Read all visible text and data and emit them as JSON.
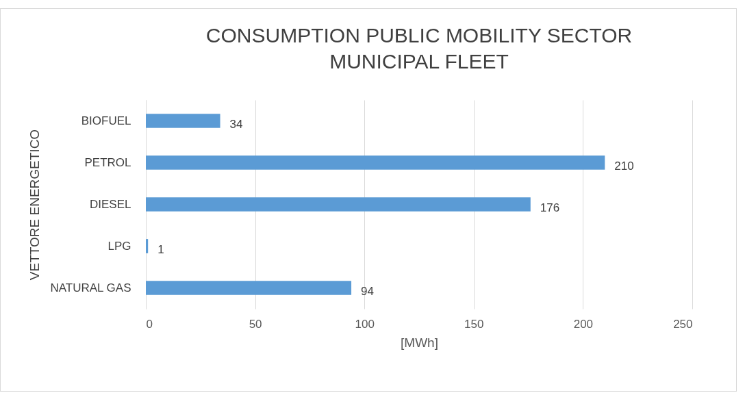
{
  "chart_data": {
    "type": "bar",
    "orientation": "horizontal",
    "title": "CONSUMPTION PUBLIC MOBILITY SECTOR\nMUNICIPAL FLEET",
    "xlabel": "[MWh]",
    "ylabel": "VETTORE ENERGETICO",
    "categories": [
      "BIOFUEL",
      "PETROL",
      "DIESEL",
      "LPG",
      "NATURAL GAS"
    ],
    "values": [
      34,
      210,
      176,
      1,
      94
    ],
    "color": "#5b9bd5",
    "xlim": [
      0,
      250
    ],
    "xticks": [
      0,
      50,
      100,
      150,
      200,
      250
    ],
    "grid": "x",
    "data_labels": true
  }
}
